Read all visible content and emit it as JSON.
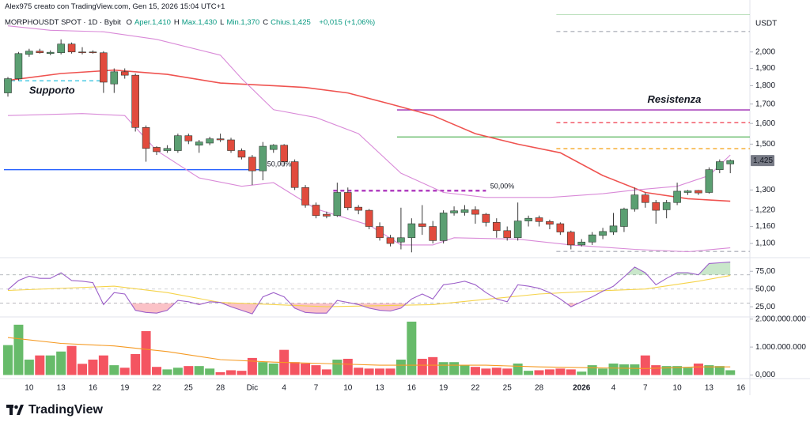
{
  "attribution": "Alex975 creato con TradingView.com, Gen 15, 2026 15:04 UTC+1",
  "brand": "TradingView",
  "chart_data": [
    {
      "type": "candlestick",
      "title": "MORPHOUSDT SPOT · 1D · Bybit",
      "info": [
        {
          "key": "O",
          "text": "Aper.1,410"
        },
        {
          "key": "H",
          "text": "Max.1,430"
        },
        {
          "key": "L",
          "text": "Min.1,370"
        },
        {
          "key": "C",
          "text": "Chius.1,425"
        }
      ],
      "change": "+0,015 (+1,06%)",
      "unit": "USDT",
      "categories": [
        null,
        null,
        "10",
        null,
        null,
        "13",
        null,
        null,
        "16",
        null,
        null,
        "19",
        null,
        null,
        "22",
        null,
        null,
        "25",
        null,
        null,
        "28",
        null,
        null,
        "Dic",
        null,
        null,
        "4",
        null,
        null,
        "7",
        null,
        null,
        "10",
        null,
        null,
        "13",
        null,
        null,
        "16",
        null,
        null,
        "19",
        null,
        null,
        "22",
        null,
        null,
        "25",
        null,
        null,
        "28",
        null,
        null,
        null,
        "2026",
        null,
        null,
        "4",
        null,
        null,
        "7",
        null,
        null,
        "10",
        null,
        null,
        "13",
        null,
        null,
        "16"
      ],
      "open": [
        1760,
        1840,
        1985,
        2005,
        1990,
        1995,
        2050,
        2000,
        2000,
        1995,
        1810,
        1880,
        1860,
        1580,
        1485,
        1470,
        1470,
        1540,
        1495,
        1505,
        1525,
        1520,
        1470,
        1440,
        1380,
        1475,
        1495,
        1420,
        1310,
        1240,
        1205,
        1200,
        1290,
        1232,
        1220,
        1160,
        1120,
        1105,
        1120,
        1170,
        1160,
        1110,
        1210,
        1212,
        1222,
        1205,
        1175,
        1145,
        1120,
        1180,
        1192,
        1178,
        1170,
        1140,
        1095,
        1105,
        1128,
        1140,
        1160,
        1225,
        1280,
        1250,
        1222,
        1250,
        1290,
        1298,
        1290,
        1385,
        1410,
        null
      ],
      "high": [
        1850,
        2000,
        2020,
        2020,
        2010,
        2080,
        2060,
        2030,
        2010,
        2005,
        1900,
        1900,
        1870,
        1590,
        1490,
        1495,
        1550,
        1550,
        1520,
        1535,
        1550,
        1530,
        1480,
        1450,
        1510,
        1500,
        1500,
        1430,
        1320,
        1250,
        1215,
        1330,
        1310,
        1240,
        1225,
        1175,
        1130,
        1230,
        1190,
        1240,
        1180,
        1220,
        1235,
        1240,
        1235,
        1210,
        1190,
        1160,
        1250,
        1200,
        1200,
        1185,
        1175,
        1145,
        1115,
        1140,
        1155,
        1210,
        1230,
        1310,
        1290,
        1260,
        1260,
        1330,
        1300,
        1300,
        1395,
        1430,
        1430,
        null
      ],
      "low": [
        1740,
        1830,
        1970,
        1990,
        1980,
        1985,
        1990,
        1985,
        1990,
        1760,
        1760,
        1840,
        1560,
        1420,
        1450,
        1460,
        1460,
        1500,
        1460,
        1495,
        1510,
        1460,
        1430,
        1320,
        1340,
        1460,
        1400,
        1300,
        1230,
        1190,
        1190,
        1195,
        1220,
        1205,
        1150,
        1110,
        1090,
        1080,
        1070,
        1130,
        1100,
        1100,
        1200,
        1200,
        1170,
        1160,
        1120,
        1110,
        1110,
        1160,
        1160,
        1150,
        1130,
        1080,
        1090,
        1095,
        1115,
        1130,
        1140,
        1215,
        1230,
        1170,
        1190,
        1240,
        1280,
        1280,
        1285,
        1370,
        1370,
        null
      ],
      "close": [
        1840,
        1990,
        2005,
        1995,
        1998,
        2050,
        2000,
        1998,
        1995,
        1820,
        1880,
        1860,
        1580,
        1480,
        1465,
        1480,
        1540,
        1515,
        1510,
        1525,
        1520,
        1470,
        1440,
        1380,
        1490,
        1495,
        1420,
        1310,
        1240,
        1200,
        1198,
        1290,
        1230,
        1220,
        1160,
        1120,
        1100,
        1120,
        1170,
        1160,
        1110,
        1210,
        1218,
        1222,
        1205,
        1175,
        1145,
        1120,
        1180,
        1190,
        1178,
        1168,
        1140,
        1095,
        1105,
        1130,
        1142,
        1162,
        1225,
        1280,
        1250,
        1220,
        1250,
        1295,
        1296,
        1288,
        1385,
        1420,
        1425,
        null
      ],
      "up_color": "#5b9f72",
      "down_color": "#e14b3d",
      "log_scale": true,
      "ylim": [
        1055,
        2250
      ],
      "yticks": [
        {
          "value": 2000,
          "label": "2,000"
        },
        {
          "value": 1900,
          "label": "1,900"
        },
        {
          "value": 1800,
          "label": "1,800"
        },
        {
          "value": 1700,
          "label": "1,700"
        },
        {
          "value": 1600,
          "label": "1,600"
        },
        {
          "value": 1500,
          "label": "1,500"
        },
        {
          "value": 1300,
          "label": "1,300"
        },
        {
          "value": 1220,
          "label": "1,220"
        },
        {
          "value": 1160,
          "label": "1,160"
        },
        {
          "value": 1100,
          "label": "1,100"
        }
      ],
      "last_price": {
        "value": 1425,
        "label": "1,425"
      },
      "overlays": [
        {
          "color": "#ef5350",
          "x": [
            0,
            5,
            10,
            15,
            20,
            25,
            28,
            32,
            36,
            40,
            44,
            48,
            52,
            56,
            60,
            64,
            68
          ],
          "values": [
            1830,
            1870,
            1890,
            1865,
            1815,
            1800,
            1790,
            1760,
            1700,
            1640,
            1550,
            1500,
            1460,
            1360,
            1290,
            1265,
            1255
          ]
        },
        {
          "color": "#d98ad8",
          "x": [
            0,
            4,
            9,
            14,
            20,
            22,
            25,
            29,
            33,
            37,
            41,
            45,
            51,
            56,
            59,
            63,
            66,
            68
          ],
          "values": [
            2170,
            2140,
            2130,
            2080,
            1980,
            1840,
            1670,
            1630,
            1550,
            1370,
            1290,
            1270,
            1270,
            1285,
            1300,
            1315,
            1360,
            1450
          ]
        },
        {
          "color": "#d98ad8",
          "x": [
            0,
            7,
            11,
            14,
            18,
            22,
            25,
            29,
            34,
            37,
            40,
            42,
            48,
            53,
            59,
            64,
            68
          ],
          "values": [
            1640,
            1650,
            1640,
            1470,
            1350,
            1315,
            1330,
            1225,
            1165,
            1095,
            1095,
            1120,
            1115,
            1095,
            1080,
            1072,
            1085
          ]
        }
      ],
      "levels": [
        {
          "value": 1828,
          "x": [
            0,
            9
          ],
          "color": "#3cc6e0",
          "dash": true
        },
        {
          "value": 1385,
          "x": [
            0,
            24
          ],
          "color": "#2962ff",
          "dash": false
        },
        {
          "value": 1297,
          "x": [
            31,
            45
          ],
          "color": "#b03fc0",
          "dash": true
        },
        {
          "value": 1669,
          "x": [
            37,
            70
          ],
          "color": "#9c27b0",
          "dash": false
        },
        {
          "value": 1534,
          "x": [
            37,
            70
          ],
          "color": "#66bb6a",
          "dash": false
        },
        {
          "value": 2250,
          "x": [
            52,
            70
          ],
          "color": "#a5d6a7",
          "dash": false
        },
        {
          "value": 2132,
          "x": [
            52,
            70
          ],
          "color": "#b2b5be",
          "dash": true
        },
        {
          "value": 1604,
          "x": [
            52,
            70
          ],
          "color": "#f04a5a",
          "dash": true
        },
        {
          "value": 1479,
          "x": [
            52,
            70
          ],
          "color": "#f5a623",
          "dash": true
        },
        {
          "value": 1073,
          "x": [
            52,
            70
          ],
          "color": "#b2b5be",
          "dash": true
        }
      ],
      "annotations": [
        {
          "text": "Supporto",
          "x": 2,
          "y": 1770,
          "color": "#2fc2e0",
          "size": 13
        },
        {
          "text": "Resistenza",
          "x": 60.2,
          "y": 1722,
          "color": "#ab47bc",
          "size": 13
        },
        {
          "text": "50,00%",
          "x": 24.4,
          "y": 1408,
          "color": "#2962ff",
          "size": 9
        },
        {
          "text": "50,00%",
          "x": 45.4,
          "y": 1313,
          "color": "#c060c0",
          "size": 9
        }
      ]
    },
    {
      "type": "line",
      "series": [
        {
          "color": "#9c5fc9",
          "values": [
            49,
            62,
            68,
            65,
            65,
            73,
            62,
            61,
            59,
            28,
            45,
            43,
            20,
            17,
            16,
            20,
            34,
            32,
            28,
            32,
            31,
            25,
            20,
            15,
            39,
            45,
            39,
            23,
            17,
            16,
            16,
            34,
            31,
            28,
            23,
            20,
            19,
            23,
            36,
            43,
            36,
            56,
            58,
            61,
            56,
            45,
            36,
            32,
            56,
            54,
            51,
            45,
            36,
            25,
            32,
            39,
            47,
            54,
            67,
            81,
            73,
            56,
            65,
            73,
            73,
            70,
            86,
            87,
            88,
            null
          ]
        }
      ],
      "overlays": [
        {
          "color": "#f5d34a",
          "x": [
            0,
            10,
            15,
            20,
            30,
            40,
            50,
            55,
            60,
            65,
            68
          ],
          "values": [
            48,
            54,
            45,
            31,
            25,
            28,
            43,
            47,
            50,
            61,
            69
          ]
        }
      ],
      "bands": [
        70,
        50,
        30
      ],
      "ylim": [
        14,
        92
      ],
      "yticks": [
        {
          "value": 75,
          "label": "75,00"
        },
        {
          "value": 50,
          "label": "50,00"
        },
        {
          "value": 25,
          "label": "25,00"
        }
      ]
    },
    {
      "type": "bar",
      "values": [
        1070000000,
        1800000000,
        550000000,
        700000000,
        700000000,
        840000000,
        1040000000,
        400000000,
        550000000,
        700000000,
        350000000,
        260000000,
        750000000,
        1570000000,
        290000000,
        200000000,
        260000000,
        320000000,
        320000000,
        230000000,
        100000000,
        170000000,
        150000000,
        610000000,
        460000000,
        410000000,
        900000000,
        460000000,
        410000000,
        350000000,
        200000000,
        550000000,
        580000000,
        260000000,
        230000000,
        230000000,
        230000000,
        550000000,
        1910000000,
        580000000,
        640000000,
        460000000,
        460000000,
        350000000,
        290000000,
        230000000,
        260000000,
        230000000,
        410000000,
        150000000,
        170000000,
        200000000,
        230000000,
        200000000,
        120000000,
        350000000,
        230000000,
        410000000,
        380000000,
        380000000,
        700000000,
        350000000,
        320000000,
        320000000,
        260000000,
        410000000,
        350000000,
        320000000,
        170000000,
        null
      ],
      "up_color": "#4caf50",
      "down_color": "#f23645",
      "overlays": [
        {
          "color": "#f59a23",
          "x": [
            0,
            5,
            10,
            15,
            20,
            25,
            30,
            35,
            40,
            45,
            50,
            55,
            60,
            65,
            68
          ],
          "values": [
            1340000000,
            1130000000,
            1040000000,
            840000000,
            550000000,
            460000000,
            410000000,
            350000000,
            350000000,
            350000000,
            290000000,
            260000000,
            230000000,
            290000000,
            290000000
          ]
        }
      ],
      "ylim": [
        -100000000,
        2050000000
      ],
      "yticks": [
        {
          "value": 2000000000,
          "label": "2.000.000.000"
        },
        {
          "value": 1000000000,
          "label": "1.000.000.000"
        },
        {
          "value": 0,
          "label": "0,000"
        }
      ]
    }
  ]
}
